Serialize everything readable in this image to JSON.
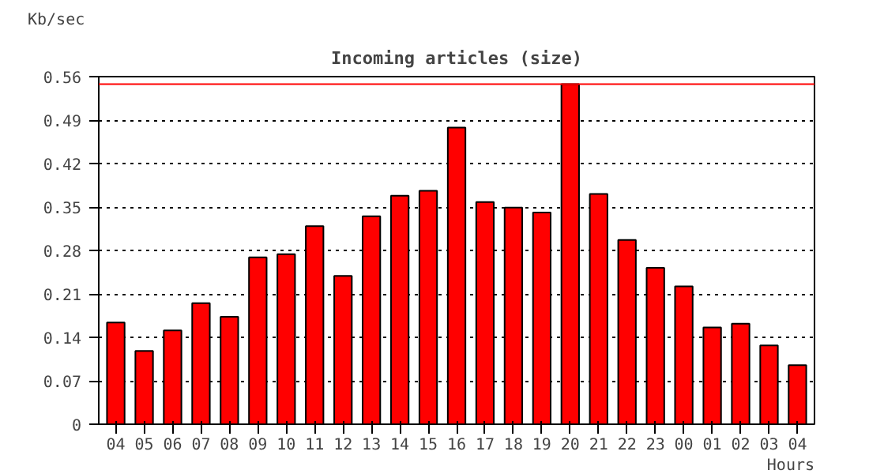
{
  "chart_data": {
    "type": "bar",
    "title": "Incoming articles (size)",
    "ylabel": "Kb/sec",
    "xlabel": "Hours",
    "categories": [
      "04",
      "05",
      "06",
      "07",
      "08",
      "09",
      "10",
      "11",
      "12",
      "13",
      "14",
      "15",
      "16",
      "17",
      "18",
      "19",
      "20",
      "21",
      "22",
      "23",
      "00",
      "01",
      "02",
      "03",
      "04"
    ],
    "values": [
      0.164,
      0.118,
      0.151,
      0.195,
      0.173,
      0.269,
      0.274,
      0.319,
      0.239,
      0.335,
      0.368,
      0.376,
      0.478,
      0.358,
      0.349,
      0.341,
      0.548,
      0.371,
      0.297,
      0.252,
      0.222,
      0.156,
      0.162,
      0.127,
      0.095
    ],
    "color": "#ff0000",
    "ylim": [
      0,
      0.56
    ],
    "yticks": [
      0,
      0.07,
      0.14,
      0.21,
      0.28,
      0.35,
      0.42,
      0.49,
      0.56
    ],
    "grid": "y",
    "line_style": "dotted",
    "ref_lines": [
      {
        "axis": "y",
        "value": 0.548,
        "color": "#ff0000"
      }
    ]
  }
}
